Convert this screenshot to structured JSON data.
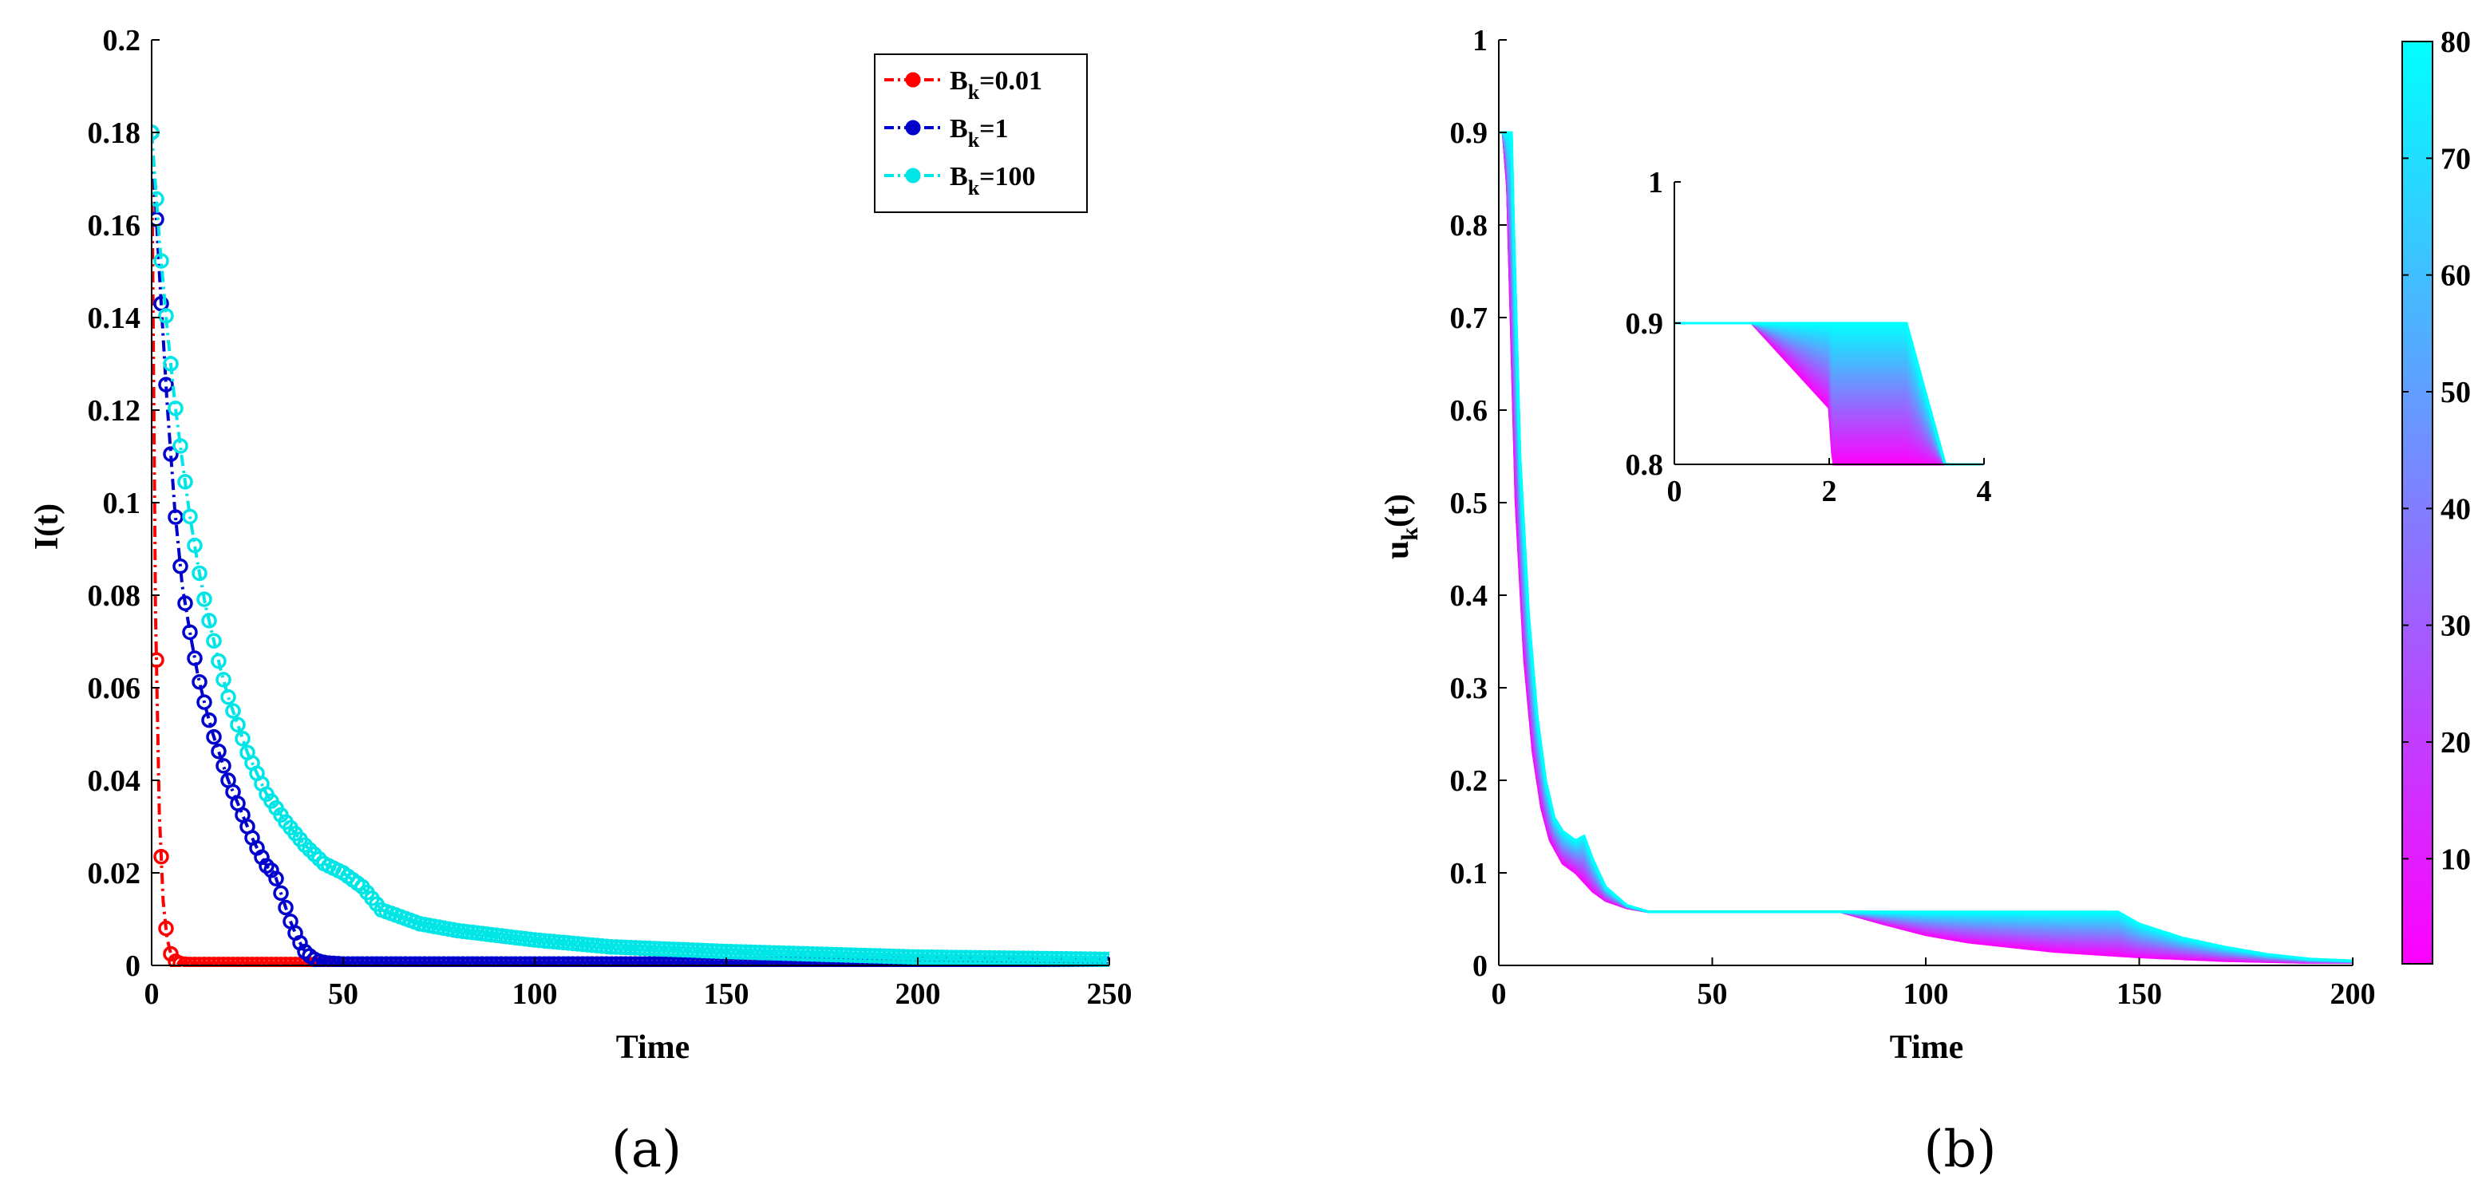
{
  "chart_data": [
    {
      "panel": "a",
      "panel_label": "(a)",
      "type": "line",
      "xlabel": "Time",
      "ylabel": "I(t)",
      "xlim": [
        0,
        250
      ],
      "ylim": [
        0,
        0.2
      ],
      "xticks": [
        0,
        50,
        100,
        150,
        200,
        250
      ],
      "xtick_labels": [
        "0",
        "50",
        "100",
        "150",
        "200",
        "250"
      ],
      "yticks": [
        0,
        0.02,
        0.04,
        0.06,
        0.08,
        0.1,
        0.12,
        0.14,
        0.16,
        0.18,
        0.2
      ],
      "ytick_labels": [
        "0",
        "0.02",
        "0.04",
        "0.06",
        "0.08",
        "0.1",
        "0.12",
        "0.14",
        "0.16",
        "0.18",
        "0.2"
      ],
      "legend_position": "top-right",
      "series": [
        {
          "name": "B_k=0.01",
          "legend_base": "B",
          "legend_sub": "k",
          "legend_value": "=0.01",
          "color": "#ff0000",
          "x": [
            0,
            1,
            2,
            3,
            4,
            5,
            6,
            7,
            8,
            10,
            15,
            20,
            30,
            40,
            50
          ],
          "y": [
            0.18,
            0.077,
            0.033,
            0.014,
            0.006,
            0.0025,
            0.001,
            0.0005,
            0.0003,
            0.0002,
            0.0002,
            0.0002,
            0.0002,
            0.0002,
            0.0002
          ]
        },
        {
          "name": "B_k=1",
          "legend_base": "B",
          "legend_sub": "k",
          "legend_value": "=1",
          "color": "#0000cc",
          "x": [
            0,
            2,
            4,
            6,
            8,
            10,
            12,
            14,
            16,
            18,
            20,
            22,
            24,
            26,
            28,
            30,
            32,
            34,
            36,
            38,
            40,
            42,
            44,
            46,
            48,
            50,
            60,
            80,
            100,
            150,
            200,
            250
          ],
          "y": [
            0.18,
            0.15,
            0.122,
            0.099,
            0.082,
            0.072,
            0.063,
            0.056,
            0.05,
            0.045,
            0.04,
            0.036,
            0.032,
            0.028,
            0.0245,
            0.0215,
            0.02,
            0.015,
            0.01,
            0.006,
            0.003,
            0.0015,
            0.0008,
            0.0005,
            0.0004,
            0.0003,
            0.0003,
            0.0003,
            0.0003,
            0.0003,
            0.0003,
            0.0003
          ]
        },
        {
          "name": "B_k=100",
          "legend_base": "B",
          "legend_sub": "k",
          "legend_value": "=100",
          "color": "#00e5e5",
          "x": [
            0,
            2,
            4,
            6,
            8,
            10,
            12,
            14,
            16,
            18,
            20,
            25,
            30,
            35,
            40,
            45,
            50,
            55,
            60,
            65,
            70,
            80,
            100,
            120,
            150,
            200,
            250
          ],
          "y": [
            0.18,
            0.157,
            0.138,
            0.122,
            0.109,
            0.097,
            0.087,
            0.078,
            0.071,
            0.064,
            0.058,
            0.046,
            0.037,
            0.031,
            0.026,
            0.022,
            0.02,
            0.017,
            0.012,
            0.0105,
            0.009,
            0.0075,
            0.0055,
            0.004,
            0.003,
            0.0018,
            0.0013
          ]
        }
      ]
    },
    {
      "panel": "b",
      "panel_label": "(b)",
      "type": "line",
      "xlabel": "Time",
      "ylabel": "u_k(t)",
      "ylabel_base": "u",
      "ylabel_sub": "k",
      "ylabel_suffix": "(t)",
      "xlim": [
        0,
        200
      ],
      "ylim": [
        0,
        1
      ],
      "xticks": [
        0,
        50,
        100,
        150,
        200
      ],
      "xtick_labels": [
        "0",
        "50",
        "100",
        "150",
        "200"
      ],
      "yticks": [
        0,
        0.1,
        0.2,
        0.3,
        0.4,
        0.5,
        0.6,
        0.7,
        0.8,
        0.9,
        1
      ],
      "ytick_labels": [
        "0",
        "0.1",
        "0.2",
        "0.3",
        "0.4",
        "0.5",
        "0.6",
        "0.7",
        "0.8",
        "0.9",
        "1"
      ],
      "series_family": "k = 1 ... 80, colored by k (magenta to cyan)",
      "colormap": [
        "#ff00ff",
        "#00ffff"
      ],
      "colorbar": {
        "range": [
          1,
          80
        ],
        "ticks": [
          10,
          20,
          30,
          40,
          50,
          60,
          70,
          80
        ],
        "tick_labels": [
          "10",
          "20",
          "30",
          "40",
          "50",
          "60",
          "70",
          "80"
        ]
      },
      "series": [
        {
          "name": "k=1",
          "x": [
            0,
            1,
            2,
            4,
            6,
            8,
            10,
            12,
            15,
            18,
            20,
            22,
            25,
            30,
            35,
            40,
            50,
            60,
            70,
            80,
            90,
            100,
            110,
            120,
            130,
            140,
            150,
            160,
            170,
            180,
            190,
            200
          ],
          "y": [
            0.9,
            0.9,
            0.84,
            0.5,
            0.33,
            0.23,
            0.17,
            0.135,
            0.11,
            0.1,
            0.09,
            0.08,
            0.07,
            0.062,
            0.058,
            0.058,
            0.058,
            0.058,
            0.058,
            0.058,
            0.045,
            0.033,
            0.025,
            0.02,
            0.015,
            0.012,
            0.009,
            0.007,
            0.005,
            0.004,
            0.003,
            0.003
          ]
        },
        {
          "name": "k=80",
          "x": [
            0,
            1,
            2,
            3,
            3.5,
            5,
            7,
            9,
            11,
            13,
            15,
            18,
            20,
            22,
            25,
            30,
            35,
            40,
            50,
            100,
            140,
            145,
            150,
            160,
            170,
            180,
            190,
            200
          ],
          "y": [
            0.9,
            0.9,
            0.9,
            0.9,
            0.8,
            0.55,
            0.38,
            0.27,
            0.2,
            0.16,
            0.145,
            0.135,
            0.14,
            0.115,
            0.085,
            0.065,
            0.058,
            0.058,
            0.058,
            0.058,
            0.058,
            0.058,
            0.045,
            0.03,
            0.02,
            0.012,
            0.007,
            0.005
          ]
        }
      ],
      "inset": {
        "xlim": [
          0,
          4
        ],
        "ylim": [
          0.8,
          1
        ],
        "xticks": [
          0,
          2,
          4
        ],
        "xtick_labels": [
          "0",
          "2",
          "4"
        ],
        "yticks": [
          0.8,
          0.9,
          1
        ],
        "ytick_labels": [
          "0.8",
          "0.9",
          "1"
        ],
        "series": [
          {
            "name": "k=1",
            "x": [
              0,
              1,
              2,
              2.05
            ],
            "y": [
              0.9,
              0.9,
              0.84,
              0.8
            ]
          },
          {
            "name": "k=80",
            "x": [
              0,
              3,
              3.5
            ],
            "y": [
              0.9,
              0.9,
              0.8
            ]
          }
        ]
      }
    }
  ]
}
